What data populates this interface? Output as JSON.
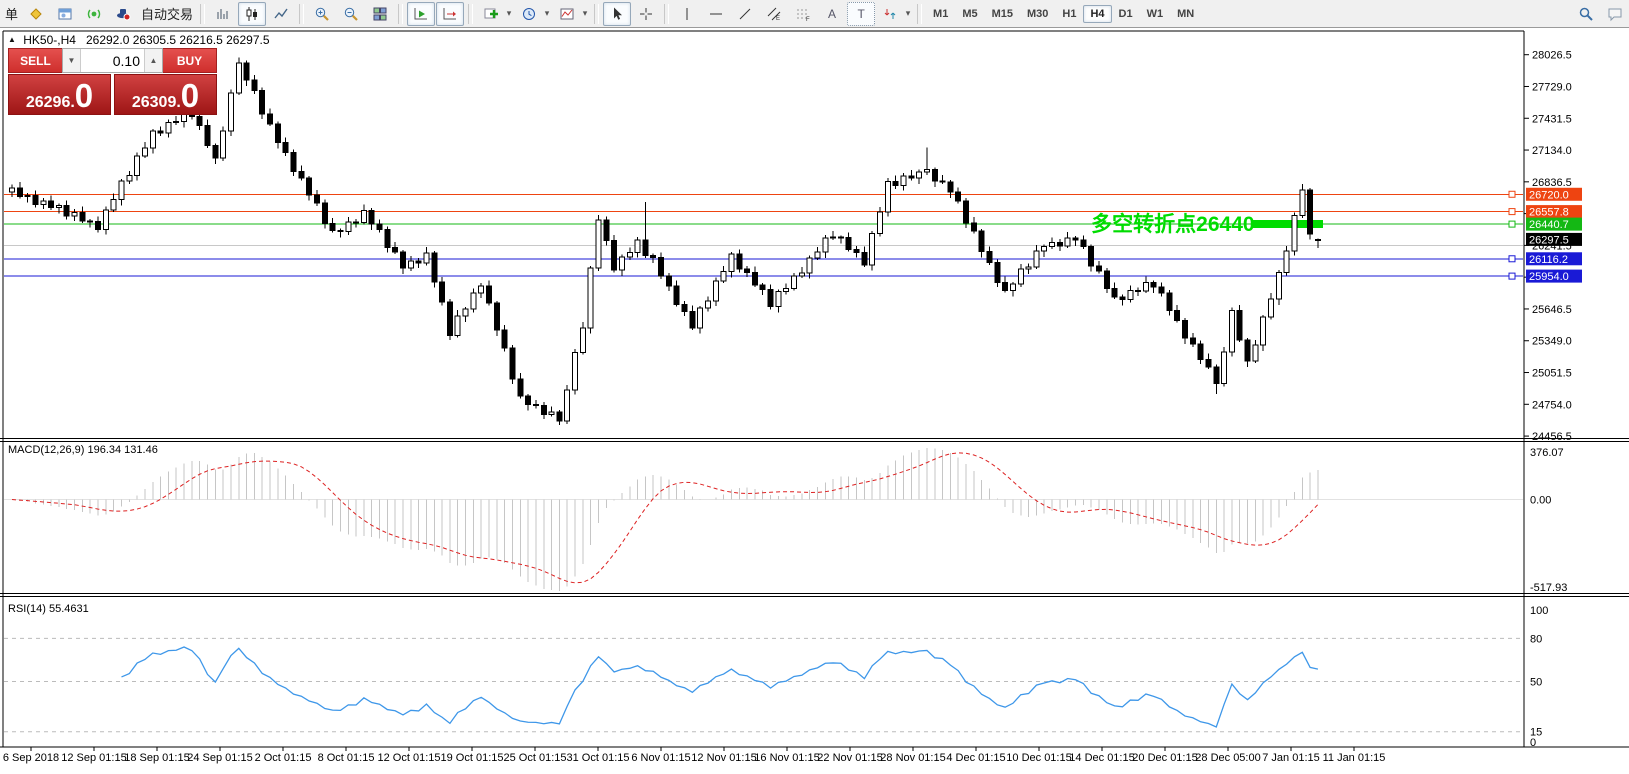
{
  "toolbar": {
    "order_text": "单",
    "autotrade_label": "自动交易",
    "timeframes": [
      "M1",
      "M5",
      "M15",
      "M30",
      "H1",
      "H4",
      "D1",
      "W1",
      "MN"
    ],
    "active_timeframe": "H4"
  },
  "trade_panel": {
    "sell_label": "SELL",
    "buy_label": "BUY",
    "volume": "0.10",
    "sell_main": "26296.",
    "sell_big": "0",
    "buy_main": "26309.",
    "buy_big": "0"
  },
  "chart": {
    "symbol_period": "HK50-,H4",
    "ohlc_text": "26292.0 26305.5 26216.5 26297.5"
  },
  "annotation": {
    "text": "多空转折点26440",
    "color": "#00DC00",
    "price": 26440.7,
    "at_bar": 138
  },
  "highlight": {
    "price": 26440.7,
    "from_bar": 159,
    "to_bar": 167,
    "color": "#00DC00"
  },
  "levels": [
    {
      "price": 26720.0,
      "label": "26720.0",
      "color": "#EE4411"
    },
    {
      "price": 26557.8,
      "label": "26557.8",
      "color": "#EE4411"
    },
    {
      "price": 26440.7,
      "label": "26440.7",
      "color": "#14B814"
    },
    {
      "price": 26241.5,
      "label": null,
      "color": "#C8C8C8"
    },
    {
      "price": 26116.2,
      "label": "26116.2",
      "color": "#1A1AD6"
    },
    {
      "price": 25954.0,
      "label": "25954.0",
      "color": "#1A1AD6"
    }
  ],
  "bid": {
    "price": 26297.5,
    "label": "26297.5",
    "color": "#000000"
  },
  "indicators": {
    "macd_label": "MACD(12,26,9) 196.34 131.46",
    "rsi_label": "RSI(14) 55.4631"
  },
  "axis": {
    "price_ticks": [
      "28026.5",
      "27729.0",
      "27431.5",
      "27134.0",
      "26836.5",
      "26539.0",
      "26241.5",
      "25944.0",
      "25646.5",
      "25349.0",
      "25051.5",
      "24754.0",
      "24456.5"
    ],
    "macd_ticks": [
      "376.07",
      "0.00",
      "-517.93"
    ],
    "rsi_ticks": [
      "100",
      "80",
      "50",
      "15",
      "0"
    ],
    "rsi_levels": [
      80,
      50,
      15
    ],
    "dates": [
      "6 Sep 2018",
      "12 Sep 01:15",
      "18 Sep 01:15",
      "24 Sep 01:15",
      "2 Oct 01:15",
      "8 Oct 01:15",
      "12 Oct 01:15",
      "19 Oct 01:15",
      "25 Oct 01:15",
      "31 Oct 01:15",
      "6 Nov 01:15",
      "12 Nov 01:15",
      "16 Nov 01:15",
      "22 Nov 01:15",
      "28 Nov 01:15",
      "4 Dec 01:15",
      "10 Dec 01:15",
      "14 Dec 01:15",
      "20 Dec 01:15",
      "28 Dec 05:00",
      "7 Jan 01:15",
      "11 Jan 01:15"
    ]
  },
  "colors": {
    "candle_up": "#FFFFFF",
    "candle_down": "#000000",
    "candle_stroke": "#000000",
    "macd_hist": "#C6C6C6",
    "macd_signal": "#DD2222",
    "rsi_line": "#3E97E9",
    "panel_red": "#D03030"
  },
  "chart_data": {
    "type": "candlestick",
    "symbol": "HK50-",
    "period": "H4",
    "ylim": [
      24456.5,
      28026.5
    ],
    "last_bar": {
      "open": 26292.0,
      "high": 26305.5,
      "low": 26216.5,
      "close": 26297.5
    },
    "indicator_values": {
      "macd_main": 196.34,
      "macd_signal": 131.46,
      "rsi": 55.4631
    },
    "candles": [
      [
        26740,
        26810,
        26695,
        26780
      ],
      [
        26780,
        26835,
        26680,
        26700
      ],
      [
        26700,
        26730,
        26645,
        26710
      ],
      [
        26710,
        26755,
        26595,
        26625
      ],
      [
        26625,
        26685,
        26580,
        26655
      ],
      [
        26655,
        26710,
        26575,
        26595
      ],
      [
        26595,
        26635,
        26540,
        26615
      ],
      [
        26615,
        26660,
        26485,
        26515
      ],
      [
        26515,
        26580,
        26470,
        26550
      ],
      [
        26550,
        26605,
        26450,
        26470
      ],
      [
        26470,
        26490,
        26410,
        26465
      ],
      [
        26465,
        26510,
        26360,
        26390
      ],
      [
        26390,
        26605,
        26345,
        26575
      ],
      [
        26575,
        26725,
        26555,
        26670
      ],
      [
        26670,
        26865,
        26615,
        26845
      ],
      [
        26845,
        26940,
        26815,
        26895
      ],
      [
        26895,
        27110,
        26850,
        27080
      ],
      [
        27080,
        27210,
        27060,
        27155
      ],
      [
        27155,
        27330,
        27100,
        27310
      ],
      [
        27310,
        27355,
        27265,
        27295
      ],
      [
        27295,
        27420,
        27250,
        27390
      ],
      [
        27390,
        27455,
        27370,
        27400
      ],
      [
        27400,
        27505,
        27345,
        27485
      ],
      [
        27485,
        27530,
        27420,
        27450
      ],
      [
        27450,
        27480,
        27320,
        27365
      ],
      [
        27365,
        27420,
        27155,
        27175
      ],
      [
        27175,
        27195,
        27005,
        27060
      ],
      [
        27060,
        27355,
        27030,
        27310
      ],
      [
        27310,
        27700,
        27265,
        27670
      ],
      [
        27670,
        28000,
        27650,
        27950
      ],
      [
        27950,
        27970,
        27735,
        27790
      ],
      [
        27790,
        27835,
        27660,
        27690
      ],
      [
        27690,
        27720,
        27425,
        27470
      ],
      [
        27470,
        27525,
        27360,
        27380
      ],
      [
        27380,
        27400,
        27150,
        27205
      ],
      [
        27205,
        27250,
        27080,
        27110
      ],
      [
        27110,
        27140,
        26890,
        26935
      ],
      [
        26935,
        26990,
        26850,
        26870
      ],
      [
        26870,
        26890,
        26660,
        26715
      ],
      [
        26715,
        26760,
        26610,
        26640
      ],
      [
        26640,
        26670,
        26400,
        26445
      ],
      [
        26445,
        26500,
        26360,
        26380
      ],
      [
        26380,
        26400,
        26315,
        26370
      ],
      [
        26370,
        26505,
        26340,
        26460
      ],
      [
        26460,
        26490,
        26410,
        26455
      ],
      [
        26455,
        26625,
        26435,
        26570
      ],
      [
        26570,
        26590,
        26385,
        26440
      ],
      [
        26440,
        26485,
        26360,
        26390
      ],
      [
        26390,
        26420,
        26175,
        26220
      ],
      [
        26220,
        26275,
        26160,
        26180
      ],
      [
        26180,
        26200,
        25975,
        26030
      ],
      [
        26030,
        26140,
        26000,
        26095
      ],
      [
        26095,
        26125,
        26030,
        26075
      ],
      [
        26075,
        26225,
        26055,
        26170
      ],
      [
        26170,
        26190,
        25845,
        25900
      ],
      [
        25900,
        25945,
        25680,
        25710
      ],
      [
        25710,
        25740,
        25355,
        25400
      ],
      [
        25400,
        25635,
        25380,
        25580
      ],
      [
        25580,
        25665,
        25525,
        25645
      ],
      [
        25645,
        25840,
        25615,
        25795
      ],
      [
        25795,
        25890,
        25750,
        25860
      ],
      [
        25860,
        25915,
        25680,
        25700
      ],
      [
        25700,
        25720,
        25395,
        25450
      ],
      [
        25450,
        25495,
        25250,
        25280
      ],
      [
        25280,
        25310,
        24945,
        24990
      ],
      [
        24990,
        25045,
        24810,
        24830
      ],
      [
        24830,
        24850,
        24695,
        24750
      ],
      [
        24750,
        24795,
        24715,
        24745
      ],
      [
        24745,
        24775,
        24615,
        24660
      ],
      [
        24660,
        24735,
        24640,
        24680
      ],
      [
        24680,
        24700,
        24560,
        24600
      ],
      [
        24600,
        24935,
        24570,
        24890
      ],
      [
        24890,
        25270,
        24845,
        25240
      ],
      [
        25240,
        25525,
        25220,
        25470
      ],
      [
        25470,
        26050,
        25415,
        26030
      ],
      [
        26030,
        26525,
        26000,
        26480
      ],
      [
        26480,
        26510,
        26240,
        26285
      ],
      [
        26285,
        26340,
        25990,
        26010
      ],
      [
        26010,
        26155,
        25955,
        26135
      ],
      [
        26135,
        26220,
        26105,
        26175
      ],
      [
        26175,
        26320,
        26130,
        26290
      ],
      [
        26290,
        26650,
        26125,
        26145
      ],
      [
        26145,
        26165,
        26075,
        26130
      ],
      [
        26130,
        26175,
        25925,
        25955
      ],
      [
        25955,
        25985,
        25815,
        25860
      ],
      [
        25860,
        25915,
        25670,
        25690
      ],
      [
        25690,
        25720,
        25580,
        25625
      ],
      [
        25625,
        25680,
        25450,
        25470
      ],
      [
        25470,
        25675,
        25415,
        25655
      ],
      [
        25655,
        25765,
        25625,
        25720
      ],
      [
        25720,
        25940,
        25675,
        25910
      ],
      [
        25910,
        26050,
        25890,
        25995
      ],
      [
        25995,
        26180,
        25940,
        26160
      ],
      [
        26160,
        26205,
        25990,
        26020
      ],
      [
        26020,
        26050,
        25945,
        25990
      ],
      [
        25990,
        26045,
        25850,
        25870
      ],
      [
        25870,
        25890,
        25775,
        25830
      ],
      [
        25830,
        25875,
        25640,
        25670
      ],
      [
        25670,
        25830,
        25615,
        25810
      ],
      [
        25810,
        25885,
        25780,
        25840
      ],
      [
        25840,
        25985,
        25820,
        25955
      ],
      [
        25955,
        26040,
        25935,
        25985
      ],
      [
        25985,
        26145,
        25930,
        26125
      ],
      [
        26125,
        26225,
        26105,
        26180
      ],
      [
        26180,
        26340,
        26125,
        26310
      ],
      [
        26310,
        26375,
        26290,
        26320
      ],
      [
        26320,
        26335,
        26260,
        26315
      ],
      [
        26315,
        26360,
        26185,
        26205
      ],
      [
        26205,
        26235,
        26130,
        26175
      ],
      [
        26175,
        26230,
        26040,
        26060
      ],
      [
        26060,
        26375,
        26005,
        26355
      ],
      [
        26355,
        26600,
        26325,
        26555
      ],
      [
        26555,
        26870,
        26510,
        26840
      ],
      [
        26840,
        26895,
        26770,
        26800
      ],
      [
        26800,
        26920,
        26755,
        26890
      ],
      [
        26890,
        26945,
        26850,
        26870
      ],
      [
        26870,
        26950,
        26815,
        26930
      ],
      [
        26930,
        27160,
        26900,
        26950
      ],
      [
        26950,
        26970,
        26790,
        26845
      ],
      [
        26845,
        26900,
        26815,
        26835
      ],
      [
        26835,
        26855,
        26685,
        26740
      ],
      [
        26740,
        26785,
        26635,
        26655
      ],
      [
        26655,
        26685,
        26405,
        26450
      ],
      [
        26450,
        26505,
        26355,
        26375
      ],
      [
        26375,
        26395,
        26130,
        26185
      ],
      [
        26185,
        26230,
        26060,
        26080
      ],
      [
        26080,
        26110,
        25850,
        25895
      ],
      [
        25895,
        25950,
        25800,
        25820
      ],
      [
        25820,
        25900,
        25765,
        25880
      ],
      [
        25880,
        26065,
        25850,
        26020
      ],
      [
        26020,
        26070,
        25975,
        26040
      ],
      [
        26040,
        26245,
        26020,
        26190
      ],
      [
        26190,
        26250,
        26135,
        26230
      ],
      [
        26230,
        26315,
        26210,
        26270
      ],
      [
        26270,
        26300,
        26190,
        26235
      ],
      [
        26235,
        26365,
        26215,
        26310
      ],
      [
        26310,
        26330,
        26235,
        26290
      ],
      [
        26290,
        26335,
        26210,
        26230
      ],
      [
        26230,
        26250,
        25995,
        26050
      ],
      [
        26050,
        26095,
        25980,
        26000
      ],
      [
        26000,
        26030,
        25795,
        25840
      ],
      [
        25840,
        25895,
        25740,
        25760
      ],
      [
        25760,
        25780,
        25680,
        25735
      ],
      [
        25735,
        25865,
        25705,
        25820
      ],
      [
        25820,
        25845,
        25770,
        25815
      ],
      [
        25815,
        25950,
        25795,
        25895
      ],
      [
        25895,
        25915,
        25795,
        25850
      ],
      [
        25850,
        25895,
        25765,
        25795
      ],
      [
        25795,
        25825,
        25585,
        25630
      ],
      [
        25630,
        25685,
        25520,
        25540
      ],
      [
        25540,
        25560,
        25320,
        25375
      ],
      [
        25375,
        25420,
        25290,
        25320
      ],
      [
        25320,
        25350,
        25130,
        25175
      ],
      [
        25175,
        25230,
        25085,
        25105
      ],
      [
        25105,
        25125,
        24850,
        24950
      ],
      [
        24950,
        25290,
        24920,
        25245
      ],
      [
        25245,
        25660,
        25200,
        25630
      ],
      [
        25630,
        25685,
        25335,
        25355
      ],
      [
        25355,
        25375,
        25105,
        25160
      ],
      [
        25160,
        25355,
        25140,
        25310
      ],
      [
        25310,
        25590,
        25255,
        25570
      ],
      [
        25570,
        25795,
        25550,
        25740
      ],
      [
        25740,
        26010,
        25685,
        25990
      ],
      [
        25990,
        26235,
        25960,
        26190
      ],
      [
        26190,
        26550,
        26145,
        26520
      ],
      [
        26520,
        26815,
        26500,
        26760
      ],
      [
        26760,
        26780,
        26295,
        26350
      ],
      [
        26292,
        26305.5,
        26216.5,
        26297.5
      ]
    ]
  }
}
